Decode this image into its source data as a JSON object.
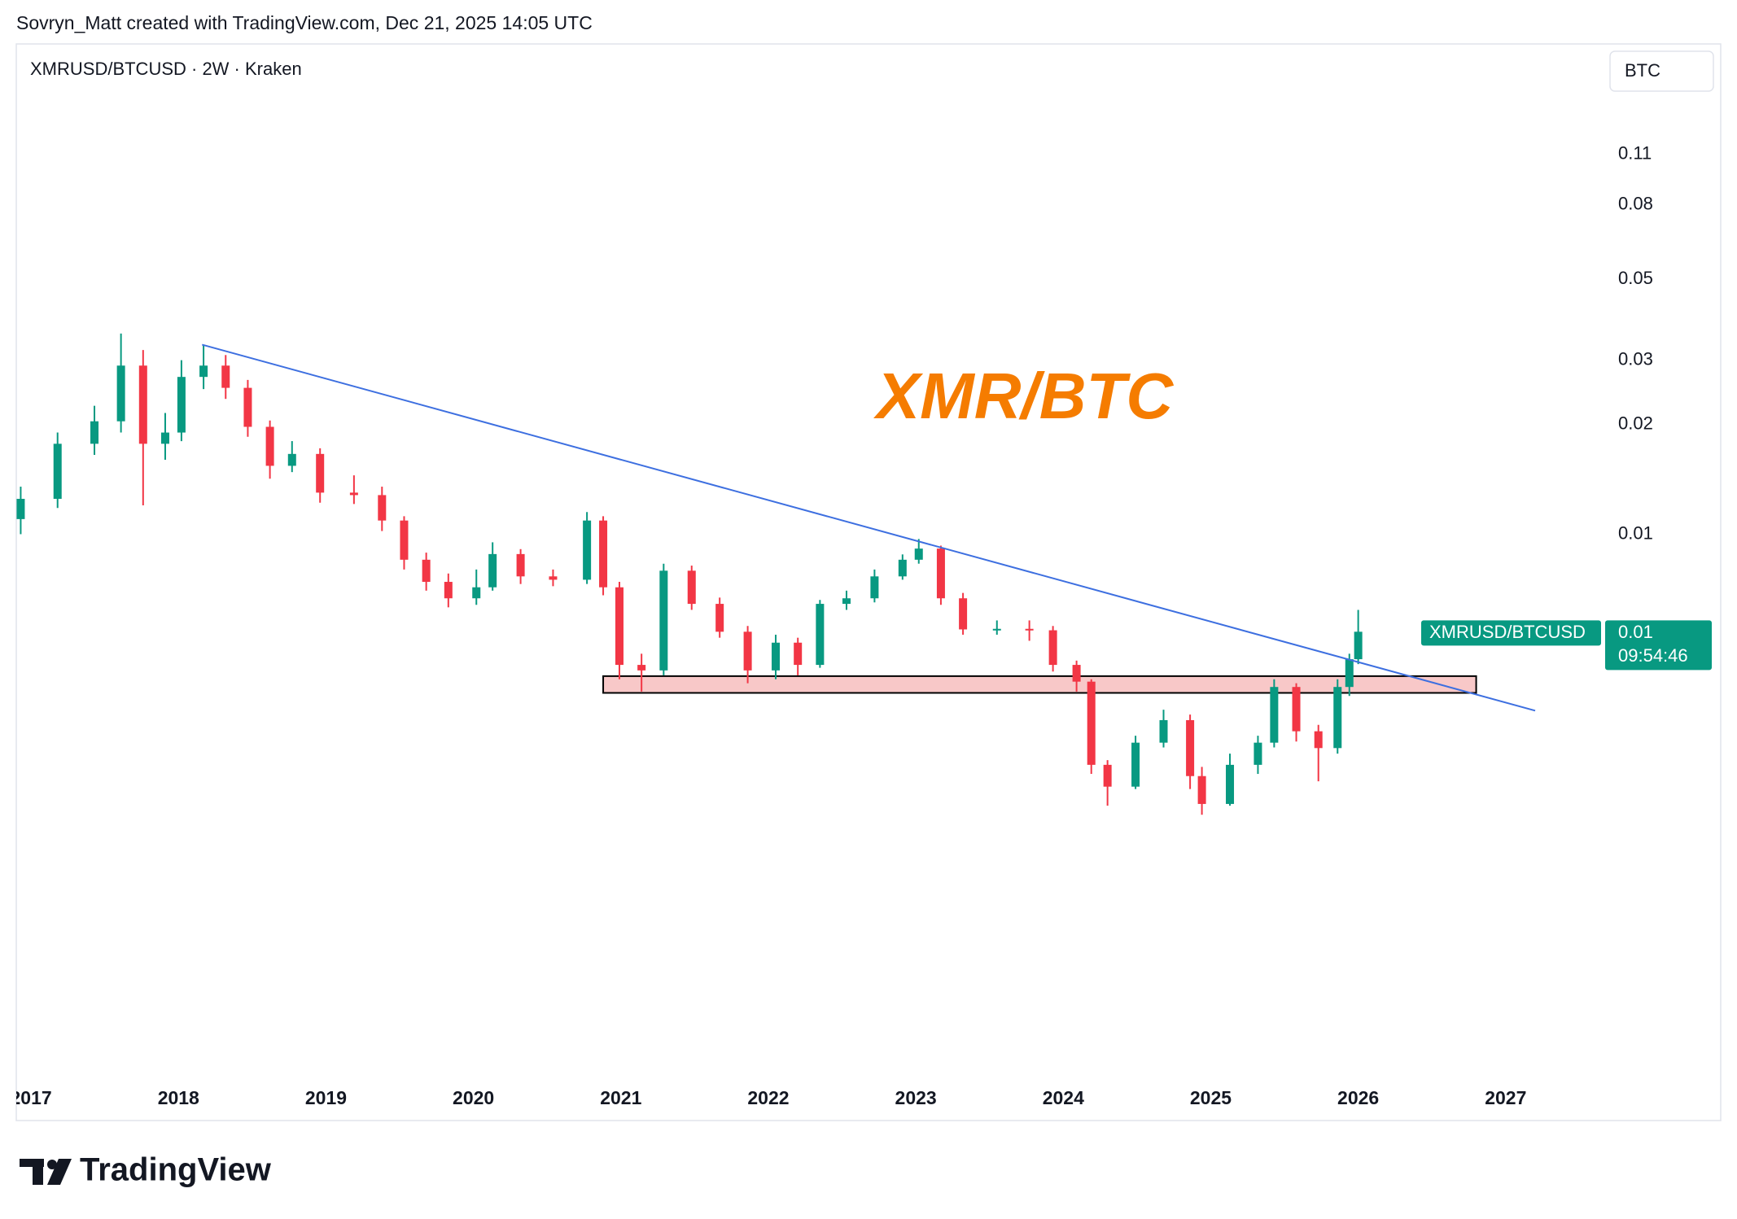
{
  "header": "Sovryn_Matt created with TradingView.com, Dec 21, 2025 14:05 UTC",
  "brand": "TradingView",
  "chart_data": {
    "type": "candlestick",
    "title": "XMRUSD/BTCUSD · 2W · Kraken",
    "currency": "BTC",
    "annotation": "XMR/BTC",
    "log_scale": true,
    "grid": false,
    "up_color": "#089981",
    "down_color": "#f23645",
    "x": [
      2016.93,
      2017.18,
      2017.43,
      2017.61,
      2017.76,
      2017.91,
      2018.02,
      2018.17,
      2018.32,
      2018.47,
      2018.62,
      2018.77,
      2018.96,
      2019.19,
      2019.38,
      2019.53,
      2019.68,
      2019.83,
      2020.02,
      2020.13,
      2020.32,
      2020.54,
      2020.77,
      2020.88,
      2020.99,
      2021.14,
      2021.29,
      2021.48,
      2021.67,
      2021.86,
      2022.05,
      2022.2,
      2022.35,
      2022.53,
      2022.72,
      2022.91,
      2023.02,
      2023.17,
      2023.32,
      2023.55,
      2023.77,
      2023.93,
      2024.09,
      2024.19,
      2024.3,
      2024.49,
      2024.68,
      2024.86,
      2024.94,
      2025.13,
      2025.32,
      2025.43,
      2025.58,
      2025.73,
      2025.86,
      2025.94,
      2026.0
    ],
    "open": [
      0.011,
      0.0125,
      0.0177,
      0.0204,
      0.029,
      0.0177,
      0.019,
      0.027,
      0.029,
      0.0252,
      0.0197,
      0.0154,
      0.0166,
      0.013,
      0.0128,
      0.0109,
      0.00851,
      0.0074,
      0.00667,
      0.00715,
      0.00882,
      0.00766,
      0.0075,
      0.0109,
      0.00715,
      0.00438,
      0.00423,
      0.00794,
      0.00644,
      0.0054,
      0.00423,
      0.00504,
      0.00438,
      0.00644,
      0.00667,
      0.00766,
      0.00851,
      0.00913,
      0.00667,
      0.00548,
      0.0055,
      0.00545,
      0.00438,
      0.00394,
      0.00233,
      0.00203,
      0.00268,
      0.00309,
      0.00217,
      0.00182,
      0.00233,
      0.00268,
      0.00381,
      0.00288,
      0.00259,
      0.00381,
      0.00454
    ],
    "high": [
      0.0135,
      0.019,
      0.0225,
      0.0355,
      0.032,
      0.0215,
      0.03,
      0.033,
      0.031,
      0.0265,
      0.0205,
      0.018,
      0.0172,
      0.0145,
      0.0135,
      0.0112,
      0.0089,
      0.0078,
      0.008,
      0.0095,
      0.0091,
      0.008,
      0.0115,
      0.0112,
      0.0074,
      0.0047,
      0.0083,
      0.0082,
      0.0067,
      0.0056,
      0.0053,
      0.0052,
      0.0066,
      0.007,
      0.008,
      0.0088,
      0.0097,
      0.0093,
      0.0069,
      0.0058,
      0.0058,
      0.0056,
      0.0045,
      0.004,
      0.0024,
      0.0028,
      0.0033,
      0.0032,
      0.0023,
      0.0025,
      0.0028,
      0.004,
      0.0039,
      0.003,
      0.004,
      0.0047,
      0.0062
    ],
    "low": [
      0.01,
      0.0118,
      0.0165,
      0.019,
      0.012,
      0.016,
      0.018,
      0.025,
      0.0235,
      0.0185,
      0.0142,
      0.0148,
      0.0122,
      0.0121,
      0.0102,
      0.008,
      0.007,
      0.0063,
      0.0064,
      0.007,
      0.0073,
      0.0072,
      0.0073,
      0.0068,
      0.004,
      0.0037,
      0.0041,
      0.0062,
      0.0052,
      0.0039,
      0.004,
      0.0041,
      0.0043,
      0.0062,
      0.0065,
      0.0075,
      0.0083,
      0.0064,
      0.0053,
      0.0053,
      0.0051,
      0.0042,
      0.0037,
      0.0022,
      0.0018,
      0.002,
      0.0026,
      0.002,
      0.0017,
      0.0018,
      0.0022,
      0.0026,
      0.0027,
      0.0021,
      0.0025,
      0.0036,
      0.0044
    ],
    "close": [
      0.0125,
      0.0177,
      0.0204,
      0.029,
      0.0177,
      0.019,
      0.027,
      0.029,
      0.0252,
      0.0197,
      0.0154,
      0.0166,
      0.013,
      0.0128,
      0.0109,
      0.00851,
      0.0074,
      0.00667,
      0.00715,
      0.00882,
      0.00766,
      0.0075,
      0.0109,
      0.00715,
      0.00438,
      0.00423,
      0.00794,
      0.00644,
      0.0054,
      0.00423,
      0.00504,
      0.00438,
      0.00644,
      0.00667,
      0.00766,
      0.00851,
      0.00913,
      0.00667,
      0.00548,
      0.0055,
      0.00545,
      0.00438,
      0.00394,
      0.00233,
      0.00203,
      0.00268,
      0.00309,
      0.00217,
      0.00182,
      0.00233,
      0.00268,
      0.00381,
      0.00288,
      0.00259,
      0.00381,
      0.00454,
      0.0054
    ],
    "trendline": {
      "color": "#3d6fe0",
      "x": [
        2018.16,
        2027.2
      ],
      "y": [
        0.0331,
        0.00328
      ]
    },
    "zone": {
      "color": "#f8c8c8",
      "x": [
        2020.88,
        2026.8
      ],
      "y": [
        0.00367,
        0.00408
      ]
    },
    "last_price": {
      "name": "XMRUSD/BTCUSD",
      "value": 0.0054,
      "value_label": "0.01",
      "countdown": "09:54:46"
    },
    "xlim": [
      2016.9,
      2027.68
    ],
    "xticks": [
      2017,
      2018,
      2019,
      2020,
      2021,
      2022,
      2023,
      2024,
      2025,
      2026,
      2027
    ],
    "ylim": [
      0.000317,
      0.22
    ],
    "yticks": [
      0.01,
      0.02,
      0.03,
      0.05,
      0.08,
      0.11
    ]
  }
}
